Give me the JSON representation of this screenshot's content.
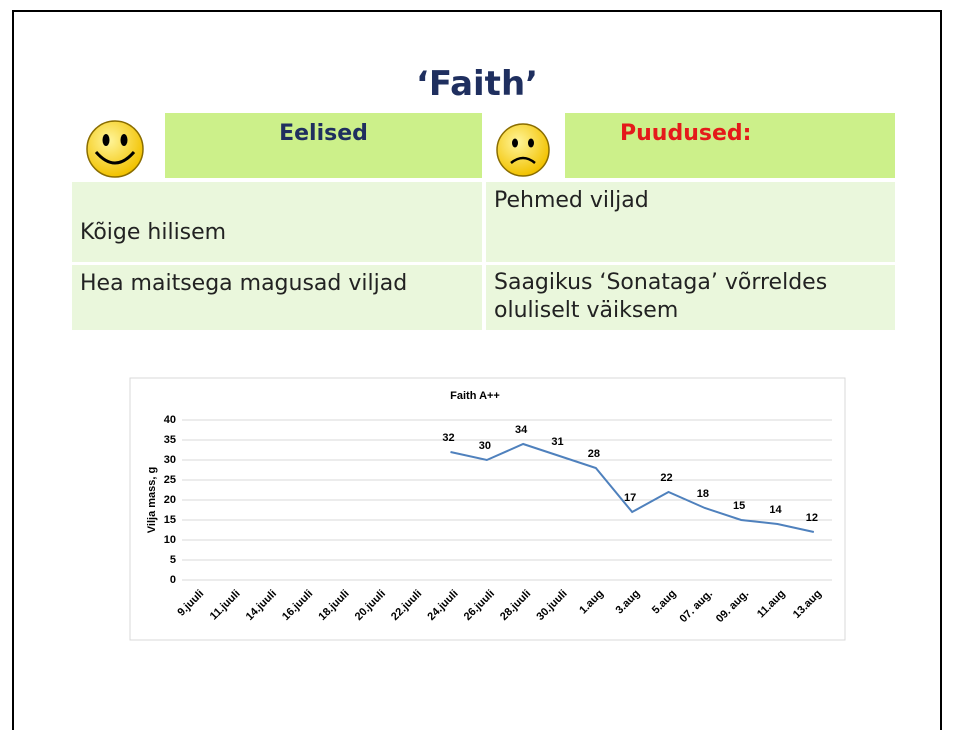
{
  "title": "‘Faith’",
  "table": {
    "header": [
      "Eelised",
      "Puudused:"
    ],
    "rows": [
      [
        "Kõige hilisem",
        "Pehmed viljad"
      ],
      [
        "Hea maitsega magusad viljad",
        "Saagikus ‘Sonataga’ võrreldes oluliselt väiksem"
      ]
    ]
  },
  "chart_data": {
    "type": "line",
    "title": "Faith A++",
    "y_label": "Vilja mass, g",
    "categories": [
      "9.juuli",
      "11.juuli",
      "14.juuli",
      "16.juuli",
      "18.juuli",
      "20.juuli",
      "22.juuli",
      "24.juuli",
      "26.juuli",
      "28.juuli",
      "30.juuli",
      "1.aug",
      "3.aug",
      "5.aug",
      "07. aug.",
      "09. aug.",
      "11.aug",
      "13.aug"
    ],
    "series": [
      {
        "name": "Faith A++",
        "color": "#4f81bd",
        "values": [
          null,
          null,
          null,
          null,
          null,
          null,
          null,
          32,
          30,
          34,
          31,
          28,
          17,
          22,
          18,
          15,
          14,
          12
        ]
      }
    ],
    "ylim": [
      0,
      40
    ],
    "yticks": [
      0,
      5,
      10,
      15,
      20,
      25,
      30,
      35,
      40
    ],
    "grid": true
  }
}
